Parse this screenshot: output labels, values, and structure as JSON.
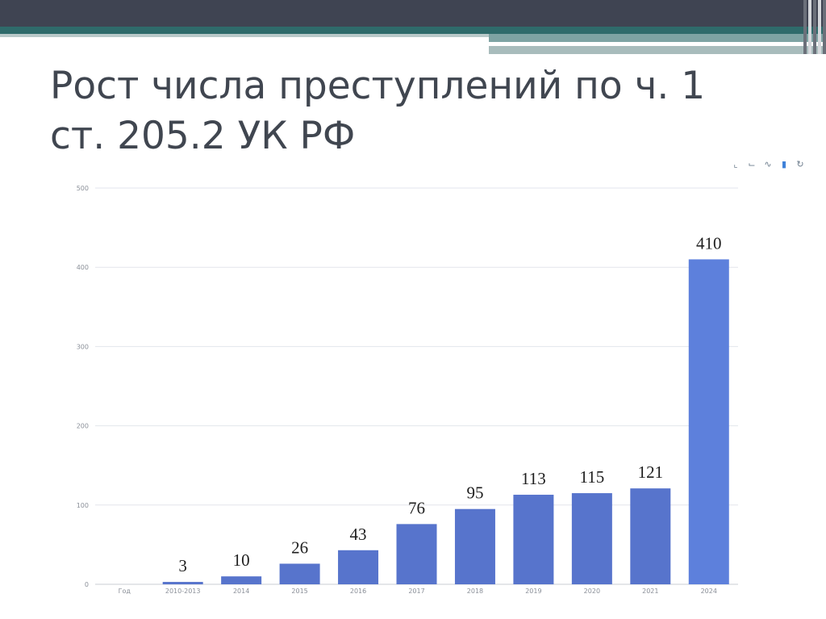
{
  "slide": {
    "title_line1": "Рост числа преступлений по ч. 1",
    "title_line2": "ст. 205.2 УК РФ"
  },
  "toolbox": {
    "icons": [
      "crop-icon",
      "undo-crop-icon",
      "line-chart-icon",
      "bar-chart-icon",
      "refresh-icon"
    ]
  },
  "colors": {
    "bar": "#5774cc",
    "bar_last": "#5d80dc",
    "grid": "#e3e6ec",
    "title": "#404650"
  },
  "chart_data": {
    "type": "bar",
    "title": "",
    "xlabel": "",
    "ylabel": "",
    "ylim": [
      0,
      500
    ],
    "yticks": [
      0,
      100,
      200,
      300,
      400,
      500
    ],
    "grid": true,
    "categories": [
      "Год",
      "2010-2013",
      "2014",
      "2015",
      "2016",
      "2017",
      "2018",
      "2019",
      "2020",
      "2021",
      "2024"
    ],
    "values": [
      null,
      3,
      10,
      26,
      43,
      76,
      95,
      113,
      115,
      121,
      410
    ],
    "data_labels": [
      "",
      "3",
      "10",
      "26",
      "43",
      "76",
      "95",
      "113",
      "115",
      "121",
      "410"
    ]
  }
}
